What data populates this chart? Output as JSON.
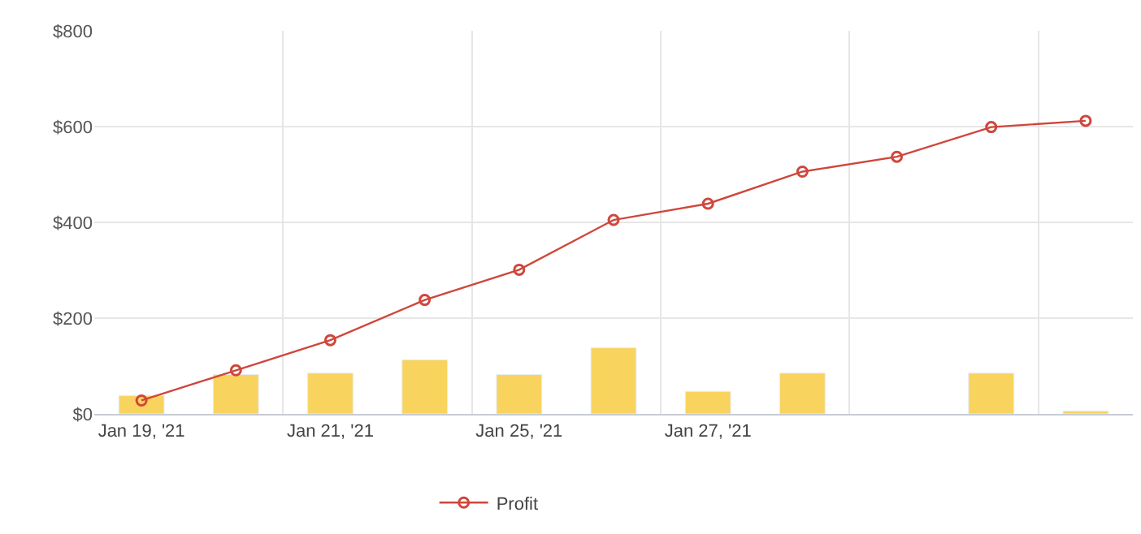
{
  "chart_data": {
    "type": "bar",
    "categories": [
      "Jan 19, '21",
      null,
      "Jan 21, '21",
      null,
      "Jan 25, '21",
      null,
      "Jan 27, '21",
      null,
      null,
      null,
      null
    ],
    "series": [
      {
        "color": "#f8d35e",
        "values": [
          38,
          82,
          85,
          113,
          82,
          138,
          47,
          85,
          null,
          85,
          6
        ]
      },
      {
        "type": "line",
        "name": "Profit",
        "color": "#d0463b",
        "values": [
          28,
          91,
          154,
          238,
          301,
          405,
          439,
          506,
          537,
          599,
          612
        ]
      }
    ],
    "ylim": [
      0,
      800
    ],
    "yticks": [
      {
        "value": 0,
        "label": "$0"
      },
      {
        "value": 200,
        "label": "$200"
      },
      {
        "value": 400,
        "label": "$400"
      },
      {
        "value": 600,
        "label": "$600"
      },
      {
        "value": 800,
        "label": "$800"
      }
    ],
    "grid": true,
    "legend": "bottom",
    "marker": "circle",
    "line_style": "solid"
  }
}
